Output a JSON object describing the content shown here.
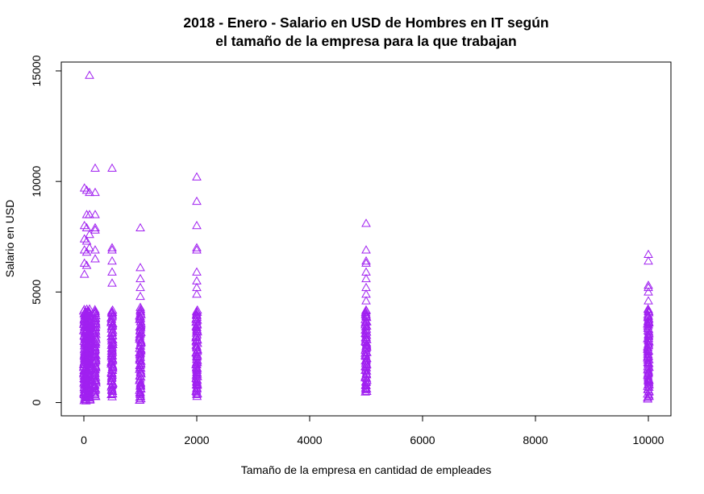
{
  "chart_data": {
    "type": "scatter",
    "title_line1": "2018 - Enero - Salario en USD de Hombres en IT según",
    "title_line2": "el tamaño de la empresa para la que trabajan",
    "xlabel": "Tamaño de la empresa en cantidad de empleades",
    "ylabel": "Salario en USD",
    "xlim": [
      -400,
      10400
    ],
    "ylim": [
      -600,
      15400
    ],
    "x_ticks": [
      0,
      2000,
      4000,
      6000,
      8000,
      10000
    ],
    "y_ticks": [
      0,
      5000,
      10000,
      15000
    ],
    "marker": "triangle",
    "color": "#a020f0",
    "grid": false,
    "groups": [
      {
        "x": 10,
        "range": [
          80,
          9700
        ],
        "outliers": [
          9700,
          8000,
          7400,
          6900,
          6300,
          5800
        ]
      },
      {
        "x": 50,
        "range": [
          100,
          9600
        ],
        "outliers": [
          9600,
          8500,
          7900,
          7300,
          6800,
          6200
        ]
      },
      {
        "x": 100,
        "range": [
          80,
          9500
        ],
        "outliers": [
          14800,
          9500,
          8500,
          7600,
          7000
        ]
      },
      {
        "x": 200,
        "range": [
          250,
          10600
        ],
        "outliers": [
          10600,
          9500,
          8500,
          7900,
          7800,
          6900,
          6500
        ]
      },
      {
        "x": 500,
        "range": [
          280,
          7000
        ],
        "outliers": [
          10600,
          7000,
          6900,
          6400,
          5900,
          5400
        ]
      },
      {
        "x": 1000,
        "range": [
          80,
          7900
        ],
        "outliers": [
          7900,
          6100,
          5600,
          5200,
          4800,
          4300
        ]
      },
      {
        "x": 2000,
        "range": [
          300,
          10200
        ],
        "outliers": [
          10200,
          9100,
          8000,
          7000,
          6900,
          5900,
          5500,
          5200,
          4900
        ]
      },
      {
        "x": 5000,
        "range": [
          450,
          8100
        ],
        "outliers": [
          8100,
          6900,
          6400,
          6300,
          5900,
          5600,
          5200,
          4900,
          4600
        ]
      },
      {
        "x": 10000,
        "range": [
          150,
          6700
        ],
        "outliers": [
          6700,
          6400,
          5300,
          5200,
          5000,
          4600,
          4200,
          3900,
          3700
        ]
      }
    ]
  }
}
